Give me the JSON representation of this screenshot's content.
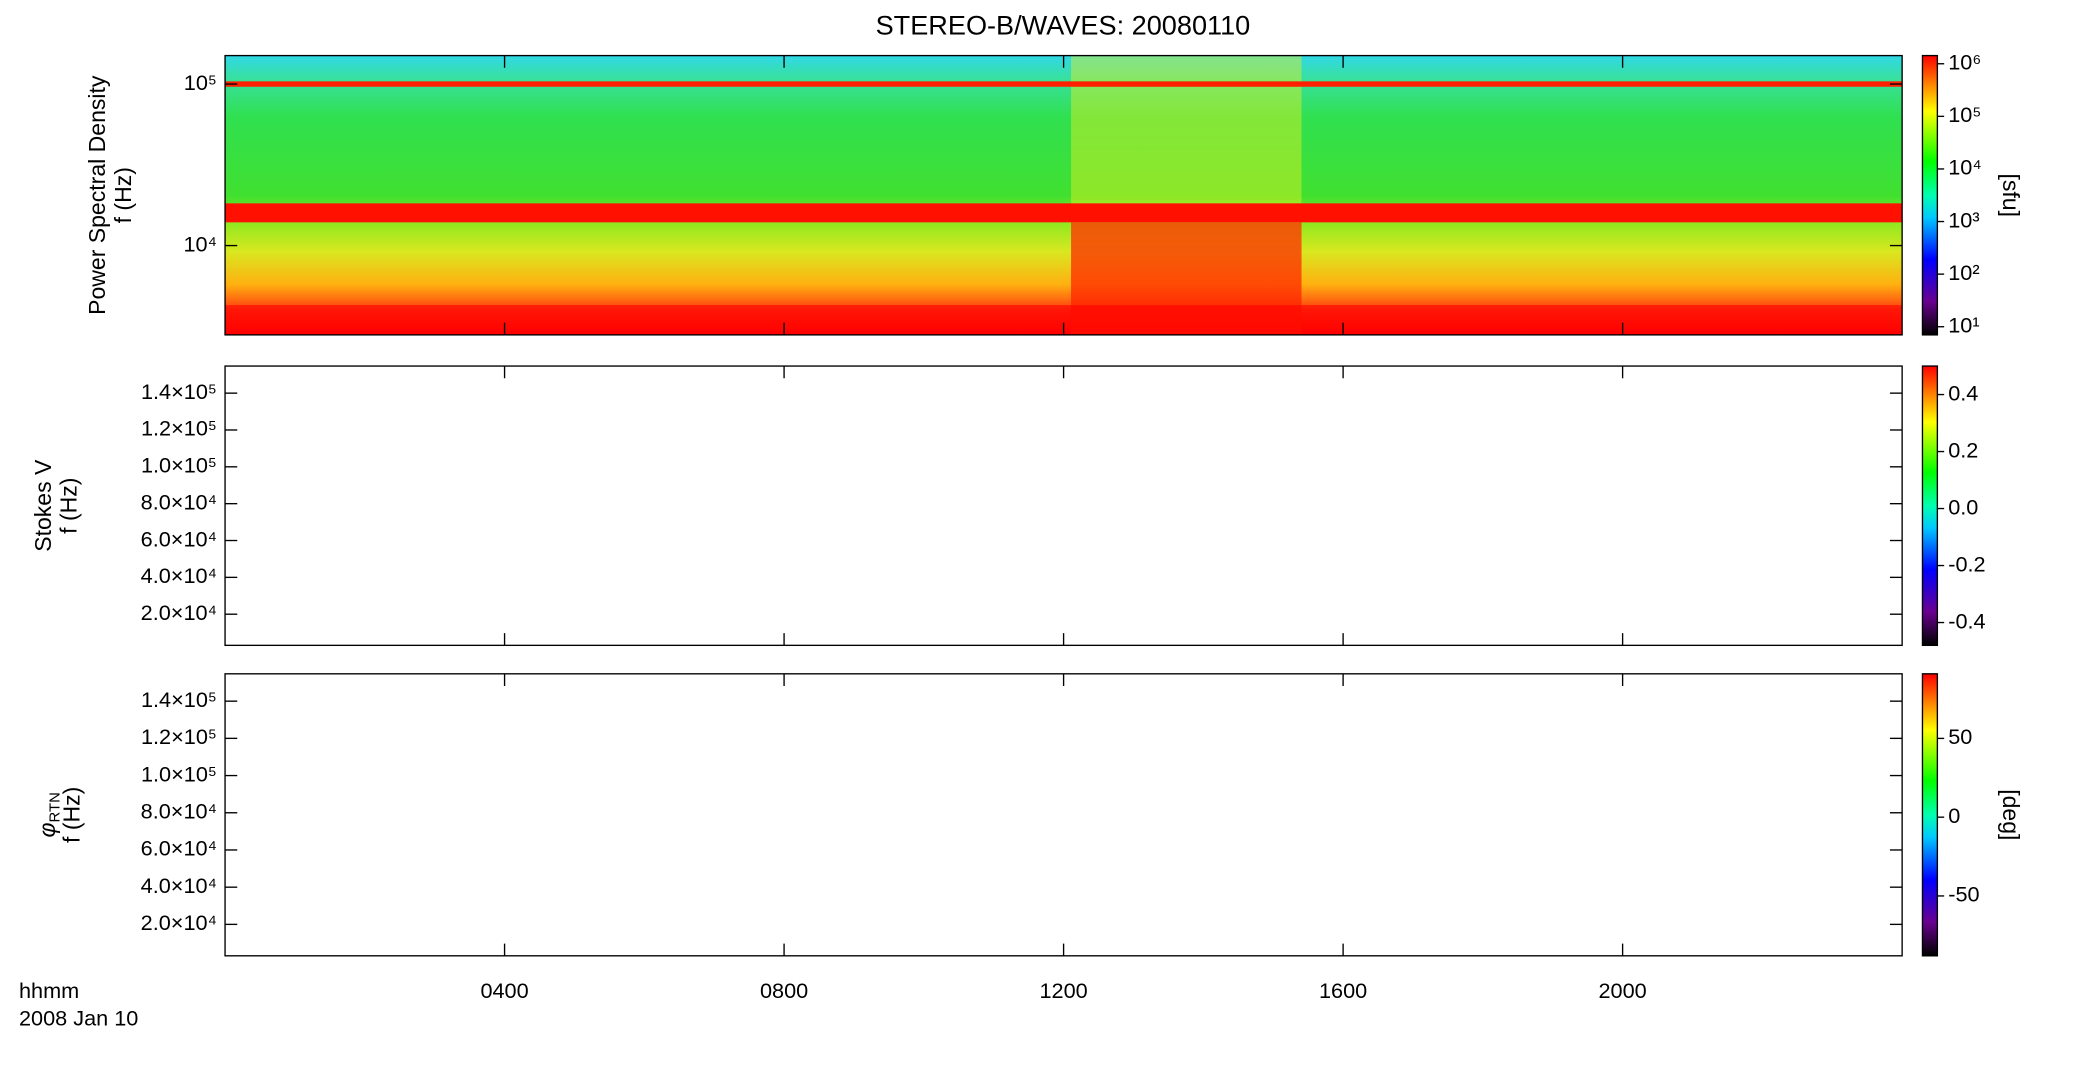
{
  "chart_data": [
    {
      "type": "spectrogram",
      "title": "STEREO-B/WAVES: 20080110",
      "ylabel": [
        "Power Spectral Density",
        "f (Hz)"
      ],
      "ylog": true,
      "ylim": [
        2800,
        150000
      ],
      "yticks": [
        {
          "value": 10000,
          "label": "10⁴"
        },
        {
          "value": 100000,
          "label": "10⁵"
        }
      ],
      "xlim": [
        0,
        24
      ],
      "colorbar": {
        "log": true,
        "zlim": [
          7,
          1430000
        ],
        "label": "[sfu]",
        "ticks": [
          {
            "value": 10,
            "label": "10¹"
          },
          {
            "value": 100,
            "label": "10²"
          },
          {
            "value": 1000,
            "label": "10³"
          },
          {
            "value": 10000,
            "label": "10⁴"
          },
          {
            "value": 100000,
            "label": "10⁵"
          },
          {
            "value": 1000000,
            "label": "10⁶"
          }
        ]
      }
    },
    {
      "type": "spectrogram",
      "ylabel": [
        "Stokes V",
        "f (Hz)"
      ],
      "ylim": [
        3100,
        154700
      ],
      "yticks": [
        {
          "value": 20000,
          "label": "2.0×10⁴"
        },
        {
          "value": 40000,
          "label": "4.0×10⁴"
        },
        {
          "value": 60000,
          "label": "6.0×10⁴"
        },
        {
          "value": 80000,
          "label": "8.0×10⁴"
        },
        {
          "value": 100000,
          "label": "1.0×10⁵"
        },
        {
          "value": 120000,
          "label": "1.2×10⁵"
        },
        {
          "value": 140000,
          "label": "1.4×10⁵"
        }
      ],
      "xlim": [
        0,
        24
      ],
      "colorbar": {
        "zlim": [
          -0.48,
          0.5
        ],
        "ticks": [
          -0.4,
          -0.2,
          {
            "value": 0,
            "label": "0.0"
          },
          0.2,
          0.4
        ]
      }
    },
    {
      "type": "spectrogram",
      "ylabel": [
        "φ",
        "RTN",
        "f (Hz)"
      ],
      "ylim": [
        3100,
        154700
      ],
      "yticks": [
        {
          "value": 20000,
          "label": "2.0×10⁴"
        },
        {
          "value": 40000,
          "label": "4.0×10⁴"
        },
        {
          "value": 60000,
          "label": "6.0×10⁴"
        },
        {
          "value": 80000,
          "label": "8.0×10⁴"
        },
        {
          "value": 100000,
          "label": "1.0×10⁵"
        },
        {
          "value": 120000,
          "label": "1.2×10⁵"
        },
        {
          "value": 140000,
          "label": "1.4×10⁵"
        }
      ],
      "xlim": [
        0,
        24
      ],
      "xlabel": [
        "hhmm",
        "2008 Jan 10"
      ],
      "xticks": [
        {
          "value": 4,
          "label": "0400"
        },
        {
          "value": 8,
          "label": "0800"
        },
        {
          "value": 12,
          "label": "1200"
        },
        {
          "value": 16,
          "label": "1600"
        },
        {
          "value": 20,
          "label": "2000"
        }
      ],
      "colorbar": {
        "zlim": [
          -88,
          91
        ],
        "label": "[deg]",
        "ticks": [
          -50,
          0,
          50
        ]
      }
    }
  ]
}
